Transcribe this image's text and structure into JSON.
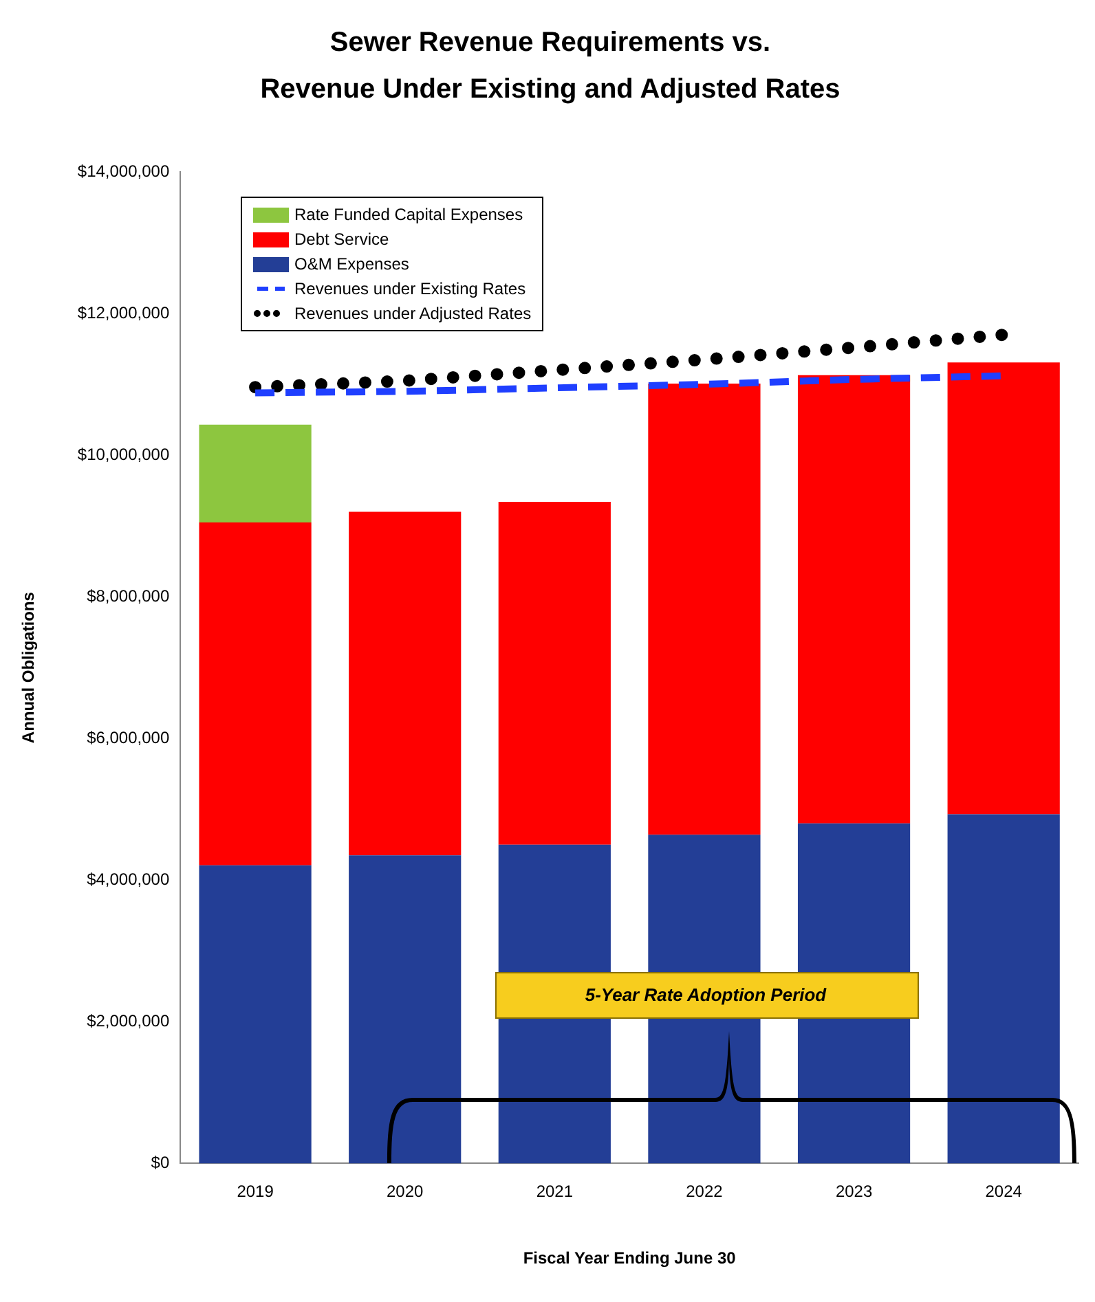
{
  "chart_data": {
    "type": "bar",
    "title": "Sewer Revenue Requirements vs.",
    "subtitle": "Revenue Under Existing and Adjusted Rates",
    "xlabel": "Fiscal Year Ending June 30",
    "ylabel": "Annual Obligations",
    "categories": [
      "2019",
      "2020",
      "2021",
      "2022",
      "2023",
      "2024"
    ],
    "stacked": true,
    "series": [
      {
        "name": "O&M Expenses",
        "color": "#233e96",
        "values": [
          4210000,
          4350000,
          4500000,
          4640000,
          4800000,
          4930000
        ]
      },
      {
        "name": "Debt Service",
        "color": "#ff0000",
        "values": [
          4840000,
          4850000,
          4840000,
          6370000,
          6330000,
          6380000
        ]
      },
      {
        "name": "Rate Funded Capital Expenses",
        "color": "#8dc63f",
        "values": [
          1380000,
          0,
          0,
          0,
          0,
          0
        ]
      },
      {
        "name": "Revenues under Existing Rates",
        "type": "line",
        "color": "#1f3fff",
        "line_style": "dashed",
        "marker": "none",
        "values": [
          10880000,
          10900000,
          10950000,
          11000000,
          11070000,
          11120000
        ]
      },
      {
        "name": "Revenues under Adjusted Rates",
        "type": "line",
        "color": "#000000",
        "line_style": "dotted",
        "marker": "none",
        "values": [
          10960000,
          11050000,
          11200000,
          11350000,
          11520000,
          11700000
        ]
      }
    ],
    "ylim": [
      0,
      14000000
    ],
    "yticks": [
      {
        "value": 0,
        "label": "$0"
      },
      {
        "value": 2000000,
        "label": "$2,000,000"
      },
      {
        "value": 4000000,
        "label": "$4,000,000"
      },
      {
        "value": 6000000,
        "label": "$6,000,000"
      },
      {
        "value": 8000000,
        "label": "$8,000,000"
      },
      {
        "value": 10000000,
        "label": "$10,000,000"
      },
      {
        "value": 12000000,
        "label": "$12,000,000"
      },
      {
        "value": 14000000,
        "label": "$14,000,000"
      }
    ],
    "grid": false,
    "legend": "top left",
    "annotations": [
      "5-Year Rate Adoption Period"
    ]
  }
}
